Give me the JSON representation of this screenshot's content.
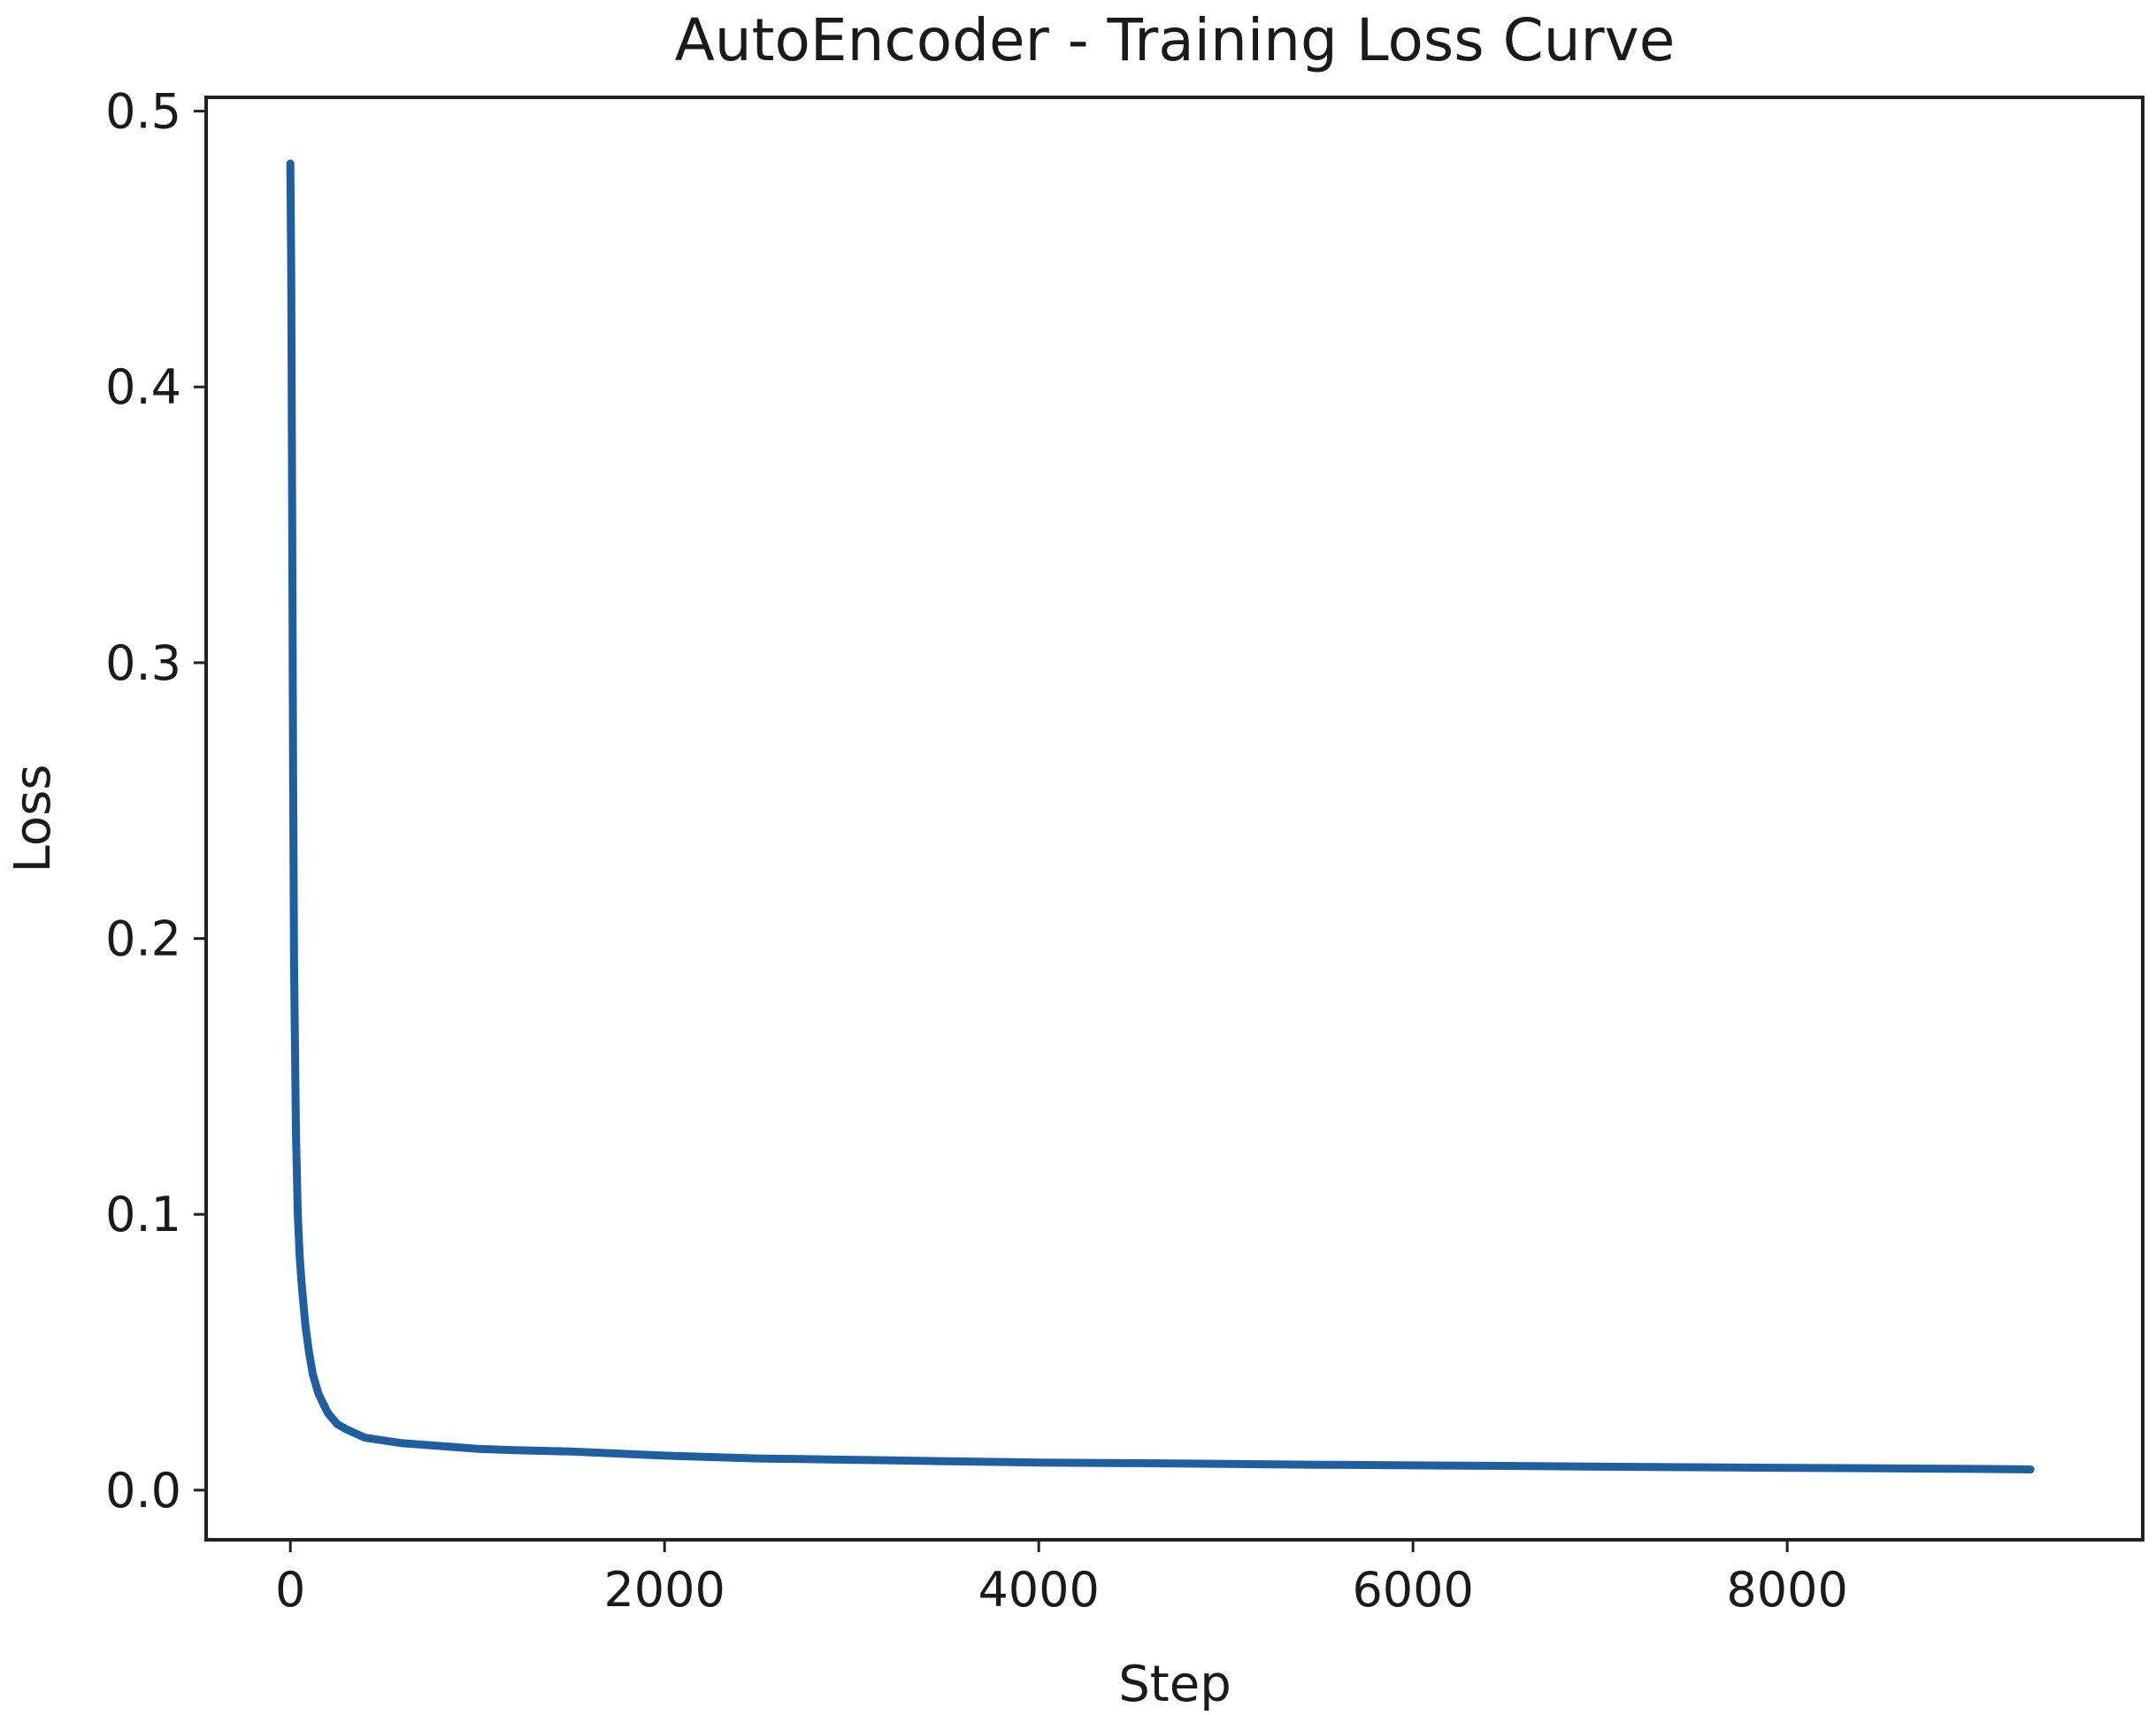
{
  "chart_data": {
    "type": "line",
    "title": "AutoEncoder - Training Loss Curve",
    "xlabel": "Step",
    "ylabel": "Loss",
    "xlim": [
      -450,
      9900
    ],
    "ylim": [
      -0.018,
      0.505
    ],
    "xticks": [
      0,
      2000,
      4000,
      6000,
      8000
    ],
    "xtick_labels": [
      "0",
      "2000",
      "4000",
      "6000",
      "8000"
    ],
    "yticks": [
      0.0,
      0.1,
      0.2,
      0.3,
      0.4,
      0.5
    ],
    "ytick_labels": [
      "0.0",
      "0.1",
      "0.2",
      "0.3",
      "0.4",
      "0.5"
    ],
    "grid": false,
    "legend": "none",
    "series": [
      {
        "color": "#1f5fa0",
        "x": [
          0,
          5,
          10,
          15,
          20,
          30,
          40,
          50,
          60,
          80,
          100,
          120,
          150,
          200,
          250,
          300,
          400,
          500,
          600,
          800,
          1000,
          1200,
          1500,
          2000,
          2500,
          3000,
          3500,
          4000,
          4500,
          5000,
          5500,
          6000,
          6500,
          7000,
          7500,
          8000,
          8500,
          9000,
          9300
        ],
        "y": [
          0.481,
          0.44,
          0.35,
          0.26,
          0.19,
          0.13,
          0.1,
          0.085,
          0.075,
          0.06,
          0.05,
          0.042,
          0.035,
          0.028,
          0.024,
          0.022,
          0.019,
          0.018,
          0.017,
          0.016,
          0.015,
          0.0145,
          0.014,
          0.0125,
          0.0115,
          0.011,
          0.0105,
          0.01,
          0.0098,
          0.0095,
          0.0092,
          0.009,
          0.0088,
          0.0085,
          0.0083,
          0.0081,
          0.0079,
          0.0077,
          0.0075
        ]
      }
    ]
  }
}
